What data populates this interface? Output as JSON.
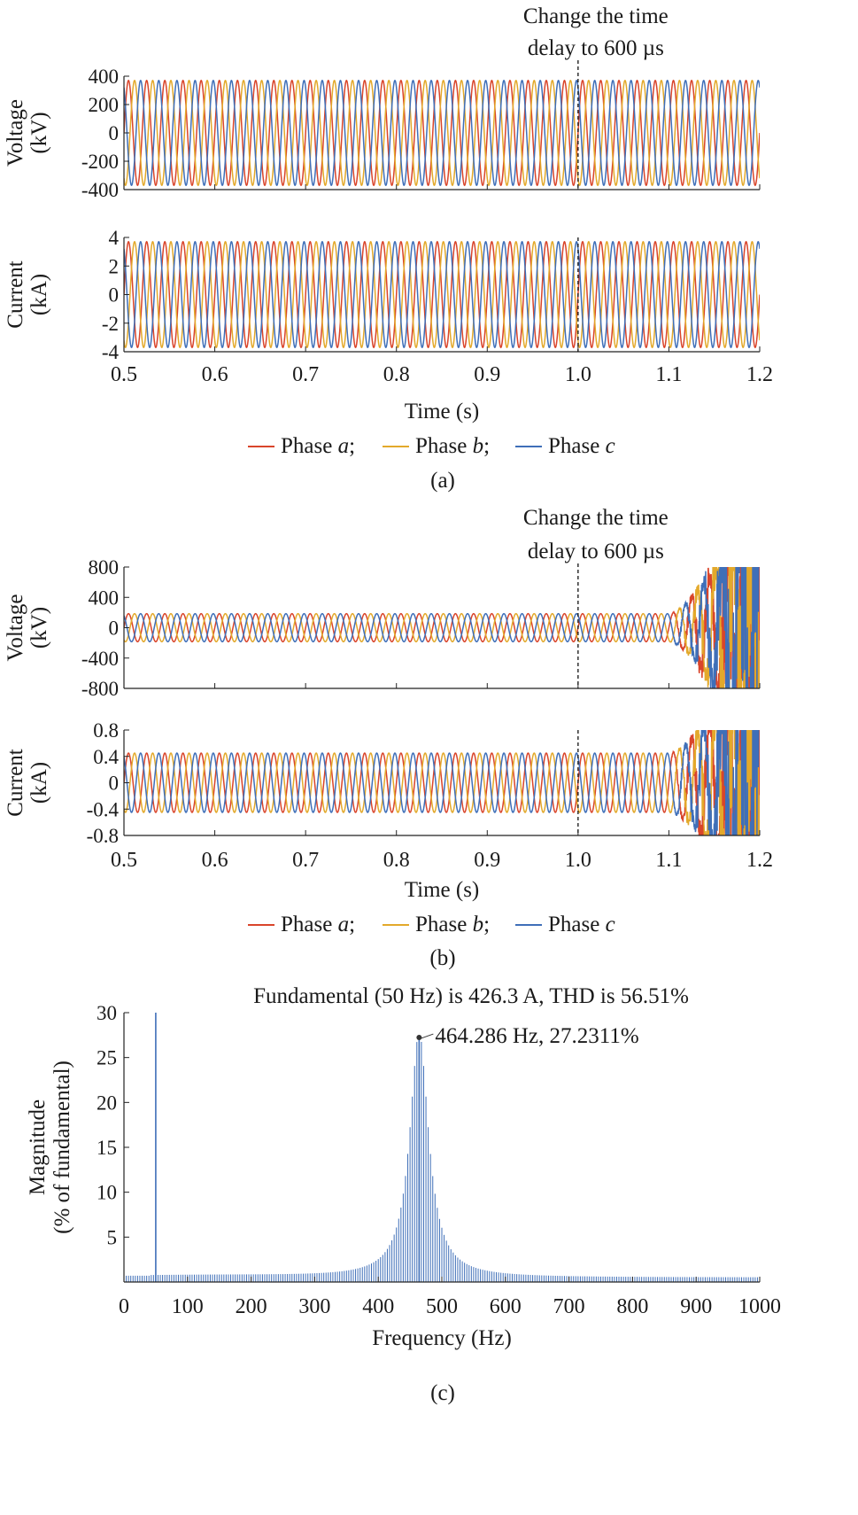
{
  "colors": {
    "phase_a": "#d9452b",
    "phase_b": "#e3a92b",
    "phase_c": "#3f6fb8",
    "spectrum": "#3f6fb8"
  },
  "chart_data": [
    {
      "id": "a",
      "type": "line",
      "caption": "(a)",
      "annotation": [
        "Change the time",
        "delay to 600 µs"
      ],
      "event_time": 1.0,
      "xlabel": "Time (s)",
      "xlim": [
        0.5,
        1.2
      ],
      "x_ticks": [
        0.5,
        0.6,
        0.7,
        0.8,
        0.9,
        1.0,
        1.1,
        1.2
      ],
      "x_tick_labels": [
        "0.5",
        "0.6",
        "0.7",
        "0.8",
        "0.9",
        "1.0",
        "1.1",
        "1.2"
      ],
      "frequency_hz": 50,
      "series": [
        {
          "name": "Phase a"
        },
        {
          "name": "Phase b"
        },
        {
          "name": "Phase c"
        }
      ],
      "legend": {
        "placement": "bottom",
        "entries": [
          {
            "prefix": "Phase ",
            "var": "a",
            "sep": ";"
          },
          {
            "prefix": "Phase ",
            "var": "b",
            "sep": ";"
          },
          {
            "prefix": "Phase ",
            "var": "c",
            "sep": ""
          }
        ]
      },
      "panels": [
        {
          "key": "voltage",
          "ylabel": [
            "Voltage",
            "(kV)"
          ],
          "ylim": [
            -400,
            400
          ],
          "y_ticks": [
            400,
            200,
            0,
            -200,
            -400
          ],
          "y_tick_labels": [
            "400",
            "200",
            "0",
            "-200",
            "-400"
          ],
          "amplitude": 370,
          "unstable_from": null
        },
        {
          "key": "current",
          "ylabel": [
            "Current",
            "(kA)"
          ],
          "ylim": [
            -4,
            4
          ],
          "y_ticks": [
            4,
            2,
            0,
            -2,
            -4
          ],
          "y_tick_labels": [
            "4",
            "2",
            "0",
            "-2",
            "-4"
          ],
          "amplitude": 3.7,
          "unstable_from": null
        }
      ]
    },
    {
      "id": "b",
      "type": "line",
      "caption": "(b)",
      "annotation": [
        "Change the time",
        "delay to 600 µs"
      ],
      "event_time": 1.0,
      "xlabel": "Time (s)",
      "xlim": [
        0.5,
        1.2
      ],
      "x_ticks": [
        0.5,
        0.6,
        0.7,
        0.8,
        0.9,
        1.0,
        1.1,
        1.2
      ],
      "x_tick_labels": [
        "0.5",
        "0.6",
        "0.7",
        "0.8",
        "0.9",
        "1.0",
        "1.1",
        "1.2"
      ],
      "frequency_hz": 50,
      "series": [
        {
          "name": "Phase a"
        },
        {
          "name": "Phase b"
        },
        {
          "name": "Phase c"
        }
      ],
      "legend": {
        "placement": "bottom",
        "entries": [
          {
            "prefix": "Phase ",
            "var": "a",
            "sep": ";"
          },
          {
            "prefix": "Phase ",
            "var": "b",
            "sep": ";"
          },
          {
            "prefix": "Phase ",
            "var": "c",
            "sep": ""
          }
        ]
      },
      "panels": [
        {
          "key": "voltage",
          "ylabel": [
            "Voltage",
            "(kV)"
          ],
          "ylim": [
            -800,
            800
          ],
          "y_ticks": [
            800,
            400,
            0,
            -400,
            -800
          ],
          "y_tick_labels": [
            "800",
            "400",
            "0",
            "-400",
            "-800"
          ],
          "amplitude": 185,
          "unstable_from": 1.1
        },
        {
          "key": "current",
          "ylabel": [
            "Current",
            "(kA)"
          ],
          "ylim": [
            -0.8,
            0.8
          ],
          "y_ticks": [
            0.8,
            0.4,
            0,
            -0.4,
            -0.8
          ],
          "y_tick_labels": [
            "0.8",
            "0.4",
            "0",
            "-0.4",
            "-0.8"
          ],
          "amplitude": 0.45,
          "unstable_from": 1.1
        }
      ]
    },
    {
      "id": "c",
      "type": "bar",
      "caption": "(c)",
      "title": "Fundamental (50 Hz) is 426.3 A, THD is 56.51%",
      "xlabel": "Frequency (Hz)",
      "ylabel": [
        "Magnitude",
        "(% of fundamental)"
      ],
      "xlim": [
        0,
        1000
      ],
      "ylim": [
        0,
        30
      ],
      "x_ticks": [
        0,
        100,
        200,
        300,
        400,
        500,
        600,
        700,
        800,
        900,
        1000
      ],
      "x_tick_labels": [
        "0",
        "100",
        "200",
        "300",
        "400",
        "500",
        "600",
        "700",
        "800",
        "900",
        "1000"
      ],
      "y_ticks": [
        30,
        25,
        20,
        15,
        10,
        5
      ],
      "y_tick_labels": [
        "30",
        "25",
        "20",
        "15",
        "10",
        "5"
      ],
      "fundamental": {
        "frequency": 50,
        "value": 30
      },
      "peak": {
        "frequency": 464.286,
        "value": 27.2311,
        "label": "464.286 Hz, 27.2311%"
      },
      "bin_hz": 3.5714,
      "baseline": 0.5
    }
  ]
}
